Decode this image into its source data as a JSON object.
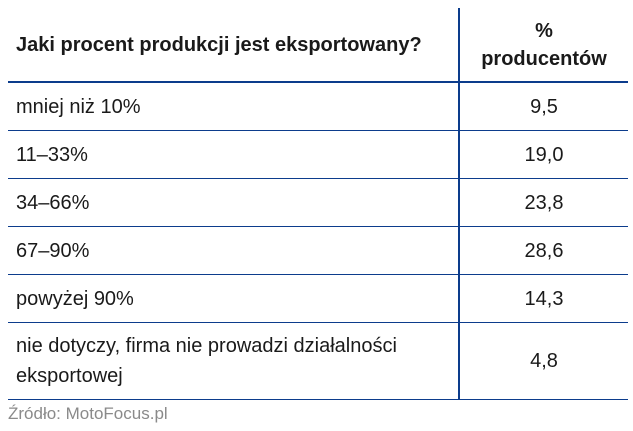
{
  "table": {
    "header": {
      "question": "Jaki procent produkcji jest eksportowany?",
      "value_line1": "%",
      "value_line2": "producentów"
    },
    "rows": [
      {
        "label": "mniej niż 10%",
        "value": "9,5"
      },
      {
        "label": "11–33%",
        "value": "19,0"
      },
      {
        "label": "34–66%",
        "value": "23,8"
      },
      {
        "label": "67–90%",
        "value": "28,6"
      },
      {
        "label": "powyżej 90%",
        "value": "14,3"
      },
      {
        "label": "nie dotyczy, firma nie prowadzi działalności eksportowej",
        "value": "4,8"
      }
    ]
  },
  "source": "Źródło: MotoFocus.pl",
  "colors": {
    "rule": "#0c3c8c",
    "text": "#1a1a1a",
    "source": "#8a8a8a"
  }
}
